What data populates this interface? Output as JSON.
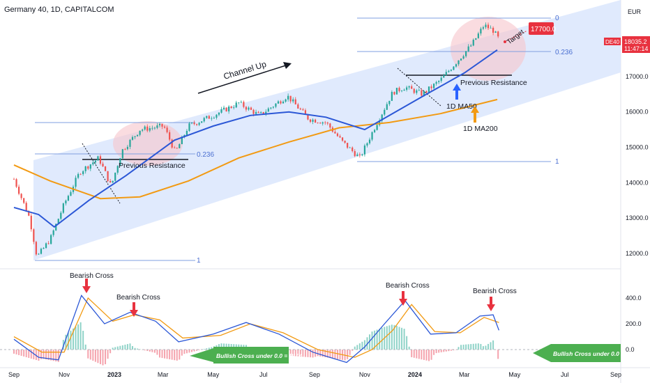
{
  "header": {
    "title": "Germany 40, 1D, CAPITALCOM",
    "currency": "EUR"
  },
  "price_label": {
    "symbol": "DE40",
    "price": "18035.2",
    "countdown": "11:47:14"
  },
  "colors": {
    "channel_fill": "#dbe6fd",
    "ma50": "#2b57d6",
    "ma200": "#f29a12",
    "candle_up": "#26a69a",
    "candle_down": "#ef5350",
    "macd": "#2b57d6",
    "signal": "#f29a12",
    "annotation_red": "#e8323f",
    "buy_green": "#4caf50",
    "fib_line": "#7f9fe0"
  },
  "annotations": {
    "channel_up": "Channel Up",
    "target": "Target",
    "target_value": "17700.0",
    "prev_resistance_1": "Previous Resistance",
    "prev_resistance_2": "Previous Resistance",
    "ma50_label": "1D MA50",
    "ma200_label": "1D MA200",
    "fib_left_0236": "0.236",
    "fib_left_1": "1",
    "fib_right_0": "0",
    "fib_right_0236": "0.236",
    "fib_right_1": "1",
    "bearish_cross_1": "Bearish Cross",
    "bearish_cross_2": "Bearish Cross",
    "bearish_cross_3": "Bearish Cross",
    "bearish_cross_4": "Bearish Cross",
    "bullish_cross_1": "Bullish Cross under 0.0 = BUY",
    "bullish_cross_2": "Bullish Cross under 0.0 = BUY"
  },
  "chart_data": [
    {
      "type": "line",
      "title": "Germany 40, 1D, CAPITALCOM",
      "x_ticks": [
        "Sep",
        "Nov",
        "2023",
        "Mar",
        "May",
        "Jul",
        "Sep",
        "Nov",
        "2024",
        "Mar",
        "May",
        "Jul",
        "Sep"
      ],
      "y_ticks": [
        12000,
        13000,
        14000,
        15000,
        16000,
        17000,
        18000
      ],
      "ylim": [
        11700,
        18700
      ],
      "series": [
        {
          "name": "",
          "x": [
            "2022-09-01",
            "2022-09-20",
            "2022-09-29",
            "2022-10-15",
            "2022-11-01",
            "2022-11-20",
            "2022-12-13",
            "2022-12-28",
            "2023-01-10",
            "2023-02-01",
            "2023-03-02",
            "2023-03-16",
            "2023-04-01",
            "2023-05-01",
            "2023-06-01",
            "2023-06-26",
            "2023-07-30",
            "2023-08-25",
            "2023-09-15",
            "2023-10-05",
            "2023-10-26",
            "2023-11-15",
            "2023-12-05",
            "2023-12-20",
            "2024-01-10",
            "2024-02-01",
            "2024-02-20",
            "2024-03-10",
            "2024-03-25",
            "2024-04-05",
            "2024-04-12"
          ],
          "values": [
            14100,
            13000,
            11900,
            12400,
            13400,
            14300,
            14700,
            13900,
            14900,
            15500,
            15600,
            14850,
            15600,
            15900,
            16250,
            15900,
            16450,
            15800,
            15700,
            15150,
            14700,
            15650,
            16550,
            16700,
            16500,
            16900,
            17400,
            17900,
            18450,
            18300,
            18050
          ]
        },
        {
          "name": "1D MA50",
          "x": [
            "2022-09-01",
            "2022-10-01",
            "2022-10-20",
            "2022-12-01",
            "2023-01-15",
            "2023-03-15",
            "2023-05-01",
            "2023-06-15",
            "2023-08-01",
            "2023-09-15",
            "2023-11-01",
            "2023-12-01",
            "2024-01-15",
            "2024-03-01",
            "2024-04-10"
          ],
          "values": [
            13300,
            13100,
            12750,
            13500,
            14200,
            15200,
            15600,
            15900,
            16000,
            15850,
            15500,
            15900,
            16500,
            17100,
            17750
          ]
        },
        {
          "name": "1D MA200",
          "x": [
            "2022-09-01",
            "2022-10-15",
            "2022-12-15",
            "2023-02-01",
            "2023-04-01",
            "2023-06-01",
            "2023-08-01",
            "2023-10-01",
            "2023-12-01",
            "2024-02-01",
            "2024-04-10"
          ],
          "values": [
            14500,
            14050,
            13550,
            13600,
            14050,
            14700,
            15150,
            15550,
            15700,
            15950,
            16350
          ]
        }
      ]
    },
    {
      "type": "line",
      "y_ticks": [
        0.0,
        200.0,
        400.0
      ],
      "ylim": [
        -80,
        560
      ],
      "series": [
        {
          "name": "",
          "x": [
            "2022-09-01",
            "2022-10-01",
            "2022-10-25",
            "2022-11-22",
            "2022-12-20",
            "2023-01-20",
            "2023-02-20",
            "2023-03-20",
            "2023-05-01",
            "2023-06-10",
            "2023-07-20",
            "2023-08-30",
            "2023-10-10",
            "2023-11-01",
            "2023-11-25",
            "2023-12-20",
            "2024-01-20",
            "2024-02-20",
            "2024-03-20",
            "2024-04-05",
            "2024-04-12"
          ],
          "values": [
            80,
            -60,
            -80,
            420,
            200,
            290,
            220,
            60,
            120,
            210,
            120,
            -20,
            -100,
            20,
            200,
            380,
            120,
            130,
            260,
            270,
            150
          ]
        },
        {
          "name": "",
          "x": [
            "2022-09-01",
            "2022-10-05",
            "2022-11-01",
            "2022-11-30",
            "2022-12-30",
            "2023-01-25",
            "2023-02-25",
            "2023-03-25",
            "2023-05-10",
            "2023-06-15",
            "2023-07-25",
            "2023-09-05",
            "2023-10-20",
            "2023-11-10",
            "2023-12-05",
            "2023-12-28",
            "2024-01-25",
            "2024-02-25",
            "2024-03-25",
            "2024-04-12"
          ],
          "values": [
            100,
            -20,
            -20,
            400,
            220,
            270,
            230,
            90,
            110,
            200,
            130,
            0,
            -60,
            0,
            150,
            350,
            140,
            130,
            250,
            210
          ]
        }
      ]
    }
  ]
}
